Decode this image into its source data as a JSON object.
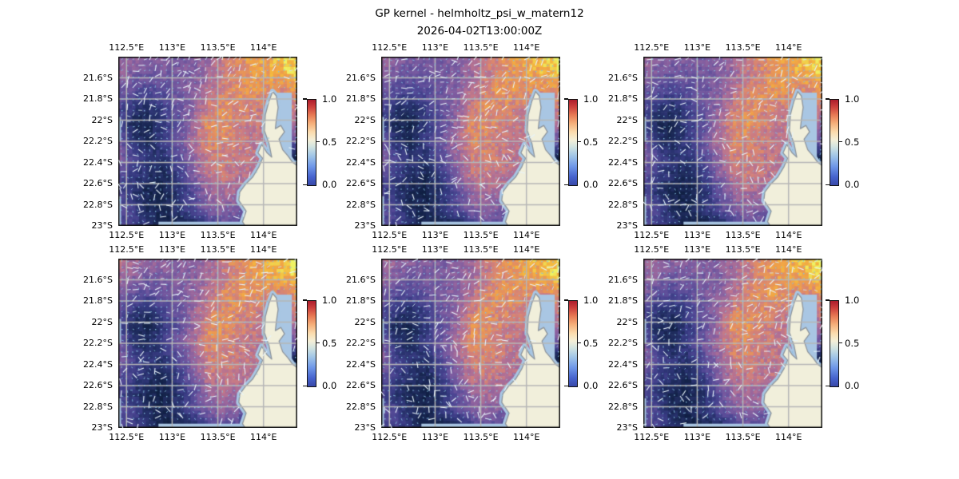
{
  "title": "GP kernel - helmholtz_psi_w_matern12",
  "subtitle": "2026-04-02T13:00:00Z",
  "chart_data": {
    "type": "heatmap",
    "layout": {
      "rows": 2,
      "cols": 3
    },
    "lon_range": [
      112.41,
      114.37
    ],
    "lat_range": [
      21.4,
      23.0
    ],
    "x_ticks": [
      {
        "lon": 112.5,
        "label": "112.5°E"
      },
      {
        "lon": 113.0,
        "label": "113°E"
      },
      {
        "lon": 113.5,
        "label": "113.5°E"
      },
      {
        "lon": 114.0,
        "label": "114°E"
      }
    ],
    "y_ticks": [
      {
        "lat": 21.6,
        "label": "21.6°S"
      },
      {
        "lat": 21.8,
        "label": "21.8°S"
      },
      {
        "lat": 22.0,
        "label": "22°S"
      },
      {
        "lat": 22.2,
        "label": "22.2°S"
      },
      {
        "lat": 22.4,
        "label": "22.4°S"
      },
      {
        "lat": 22.6,
        "label": "22.6°S"
      },
      {
        "lat": 22.8,
        "label": "22.8°S"
      },
      {
        "lat": 23.0,
        "label": "23°S"
      }
    ],
    "colorbar": {
      "vmin": 0.0,
      "vmax": 1.0,
      "tick_values": [
        1.0,
        0.5,
        0.0
      ],
      "tick_labels": [
        "1.0",
        "0.5",
        "0.0"
      ],
      "colormap": [
        [
          0.0,
          "#3848a8"
        ],
        [
          0.1,
          "#4764cf"
        ],
        [
          0.22,
          "#6f97e8"
        ],
        [
          0.34,
          "#9fc4e7"
        ],
        [
          0.45,
          "#d2e4e0"
        ],
        [
          0.53,
          "#f4efd8"
        ],
        [
          0.62,
          "#fbdcae"
        ],
        [
          0.72,
          "#f6b17c"
        ],
        [
          0.82,
          "#e87b55"
        ],
        [
          0.92,
          "#cc3e3c"
        ],
        [
          1.0,
          "#ad1c2c"
        ]
      ]
    },
    "field_colormap": [
      [
        0.0,
        "#0c1c3c"
      ],
      [
        0.1,
        "#17254f"
      ],
      [
        0.2,
        "#253069"
      ],
      [
        0.3,
        "#383b83"
      ],
      [
        0.4,
        "#4f4794"
      ],
      [
        0.48,
        "#66529c"
      ],
      [
        0.56,
        "#7f5da0"
      ],
      [
        0.63,
        "#98669d"
      ],
      [
        0.7,
        "#b37193"
      ],
      [
        0.76,
        "#cb7c82"
      ],
      [
        0.82,
        "#e08b66"
      ],
      [
        0.88,
        "#ef9f49"
      ],
      [
        0.93,
        "#f4b63e"
      ],
      [
        0.97,
        "#f0d64e"
      ],
      [
        1.0,
        "#eef263"
      ]
    ],
    "field_grid": {
      "nx": 13,
      "ny": 11,
      "values": [
        [
          0.58,
          0.52,
          0.5,
          0.52,
          0.5,
          0.55,
          0.62,
          0.75,
          0.82,
          0.87,
          0.9,
          0.95,
          1.0
        ],
        [
          0.52,
          0.45,
          0.42,
          0.45,
          0.48,
          0.52,
          0.62,
          0.72,
          0.8,
          0.85,
          0.88,
          0.92,
          0.97
        ],
        [
          0.45,
          0.36,
          0.33,
          0.4,
          0.48,
          0.55,
          0.68,
          0.78,
          0.84,
          0.85,
          0.82,
          0.8,
          0.85
        ],
        [
          0.36,
          0.2,
          0.14,
          0.3,
          0.45,
          0.58,
          0.75,
          0.82,
          0.8,
          0.78,
          0.75,
          0.72,
          0.78
        ],
        [
          0.3,
          0.1,
          0.06,
          0.25,
          0.42,
          0.62,
          0.82,
          0.83,
          0.78,
          0.75,
          0.72,
          0.66,
          0.66
        ],
        [
          0.55,
          0.2,
          0.12,
          0.3,
          0.5,
          0.66,
          0.8,
          0.8,
          0.76,
          0.73,
          0.7,
          0.5,
          0.5
        ],
        [
          0.6,
          0.35,
          0.25,
          0.2,
          0.4,
          0.6,
          0.76,
          0.78,
          0.75,
          0.72,
          0.7,
          0.05,
          0.05
        ],
        [
          0.45,
          0.3,
          0.2,
          0.12,
          0.3,
          0.55,
          0.72,
          0.75,
          0.72,
          0.7,
          0.68,
          0.6,
          0.6
        ],
        [
          0.38,
          0.22,
          0.1,
          0.08,
          0.2,
          0.42,
          0.62,
          0.68,
          0.65,
          0.6,
          0.55,
          0.58,
          0.6
        ],
        [
          0.45,
          0.35,
          0.15,
          0.1,
          0.25,
          0.4,
          0.55,
          0.6,
          0.55,
          0.45,
          0.1,
          0.55,
          0.6
        ],
        [
          0.4,
          0.35,
          0.25,
          0.05,
          0.05,
          0.08,
          0.3,
          0.45,
          0.4,
          0.1,
          0.05,
          0.5,
          0.55
        ]
      ]
    },
    "panels": [
      {
        "id": "r1c1",
        "seed": 3,
        "warm_bias": 0.1
      },
      {
        "id": "r1c2",
        "seed": 7,
        "warm_bias": 0.07
      },
      {
        "id": "r1c3",
        "seed": 11,
        "warm_bias": 0.08
      },
      {
        "id": "r2c1",
        "seed": 17,
        "warm_bias": 0.16
      },
      {
        "id": "r2c2",
        "seed": 23,
        "warm_bias": 0.12
      },
      {
        "id": "r2c3",
        "seed": 31,
        "warm_bias": 0.12
      }
    ],
    "land": {
      "fill": "#f1efdb",
      "coast_color": "#8e959c",
      "water_halo": "#a9c6e3",
      "polygon_lonlat": [
        [
          113.82,
          23.03
        ],
        [
          113.77,
          22.96
        ],
        [
          113.81,
          22.86
        ],
        [
          113.73,
          22.76
        ],
        [
          113.74,
          22.68
        ],
        [
          113.8,
          22.61
        ],
        [
          113.88,
          22.54
        ],
        [
          113.95,
          22.44
        ],
        [
          113.99,
          22.36
        ],
        [
          113.94,
          22.31
        ],
        [
          113.98,
          22.23
        ],
        [
          114.04,
          22.31
        ],
        [
          114.09,
          22.35
        ],
        [
          114.06,
          22.22
        ],
        [
          114.01,
          22.1
        ],
        [
          114.02,
          21.95
        ],
        [
          114.06,
          21.82
        ],
        [
          114.1,
          21.73
        ],
        [
          114.14,
          21.77
        ],
        [
          114.16,
          21.88
        ],
        [
          114.14,
          22.0
        ],
        [
          114.13,
          22.08
        ],
        [
          114.19,
          22.05
        ],
        [
          114.23,
          22.11
        ],
        [
          114.17,
          22.18
        ],
        [
          114.21,
          22.28
        ],
        [
          114.27,
          22.34
        ],
        [
          114.32,
          22.4
        ],
        [
          114.37,
          22.43
        ],
        [
          114.37,
          23.03
        ]
      ]
    },
    "water_patches": [
      {
        "name": "gulf-gap",
        "lon": [
          114.15,
          114.31
        ],
        "lat": [
          21.74,
          22.42
        ]
      },
      {
        "name": "bottom-strip",
        "lon": [
          112.85,
          113.86
        ],
        "lat": [
          22.96,
          23.0
        ]
      },
      {
        "name": "left-sliver-1",
        "lon": [
          112.41,
          112.44
        ],
        "lat": [
          21.97,
          22.2
        ]
      },
      {
        "name": "left-sliver-2",
        "lon": [
          112.41,
          112.44
        ],
        "lat": [
          22.72,
          23.0
        ]
      }
    ],
    "grid_color": "#b6b6b6",
    "frame_color": "#111111",
    "arrow_colors": {
      "dot": "#85bcdc",
      "mid": "#cfe6f2",
      "streak": "#e8f4fb"
    }
  }
}
